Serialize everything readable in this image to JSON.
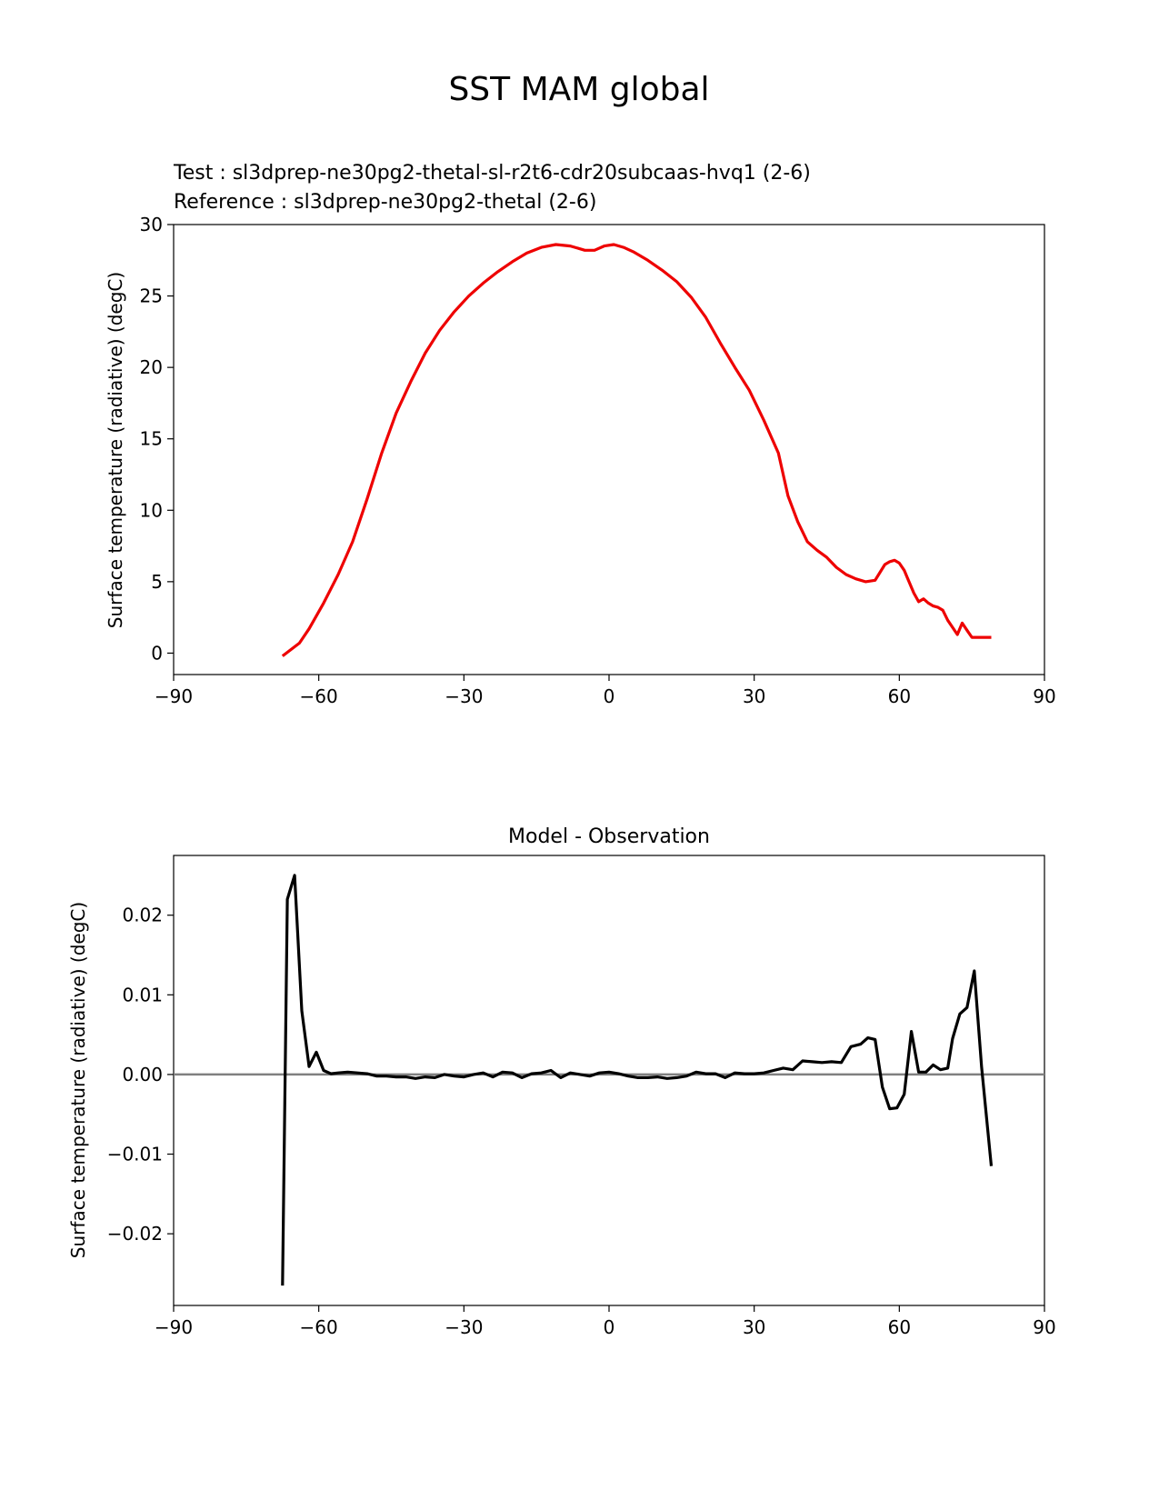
{
  "figure_title": "SST MAM global",
  "colors": {
    "test": "#000000",
    "reference": "#ee0000",
    "zero_line": "#808080"
  },
  "chart_data": [
    {
      "type": "line",
      "legend_test": "Test : sl3dprep-ne30pg2-thetal-sl-r2t6-cdr20subcaas-hvq1 (2-6)",
      "legend_reference": "Reference : sl3dprep-ne30pg2-thetal (2-6)",
      "xlabel": "",
      "ylabel": "Surface temperature (radiative) (degC)",
      "xlim": [
        -90,
        90
      ],
      "ylim": [
        -1.5,
        30
      ],
      "xticks": [
        -90,
        -60,
        -30,
        0,
        30,
        60,
        90
      ],
      "xtick_labels": [
        "−90",
        "−60",
        "−30",
        "0",
        "30",
        "60",
        "90"
      ],
      "yticks": [
        0,
        5,
        10,
        15,
        20,
        25,
        30
      ],
      "ytick_labels": [
        "0",
        "5",
        "10",
        "15",
        "20",
        "25",
        "30"
      ],
      "series": [
        {
          "name": "Reference",
          "x": [
            -67.5,
            -64,
            -62,
            -59,
            -56,
            -53,
            -50,
            -47,
            -44,
            -41,
            -38,
            -35,
            -32,
            -29,
            -26,
            -23,
            -20,
            -17,
            -14,
            -11,
            -8,
            -5,
            -3,
            -1,
            1,
            3,
            5,
            8,
            11,
            14,
            17,
            20,
            23,
            26,
            29,
            32,
            35,
            37,
            39,
            41,
            43,
            45,
            47,
            49,
            51,
            53,
            55,
            57,
            58,
            59,
            60,
            61,
            62,
            63,
            64,
            65,
            66,
            67,
            68,
            69,
            70,
            71,
            72,
            73,
            74,
            75,
            76,
            77,
            78,
            79
          ],
          "values": [
            -0.2,
            0.7,
            1.7,
            3.5,
            5.5,
            7.8,
            10.8,
            14.0,
            16.8,
            19.0,
            21.0,
            22.6,
            23.9,
            25.0,
            25.9,
            26.7,
            27.4,
            28.0,
            28.4,
            28.6,
            28.5,
            28.2,
            28.2,
            28.5,
            28.6,
            28.4,
            28.1,
            27.5,
            26.8,
            26.0,
            24.9,
            23.5,
            21.7,
            20.0,
            18.4,
            16.3,
            14.0,
            11.0,
            9.2,
            7.8,
            7.2,
            6.7,
            6.0,
            5.5,
            5.2,
            5.0,
            5.1,
            6.2,
            6.4,
            6.5,
            6.3,
            5.8,
            5.0,
            4.2,
            3.6,
            3.8,
            3.5,
            3.3,
            3.2,
            3.0,
            2.3,
            1.8,
            1.3,
            2.1,
            1.6,
            1.1,
            1.1,
            1.1,
            1.1,
            1.1
          ]
        }
      ]
    },
    {
      "type": "line",
      "title": "Model - Observation",
      "xlabel": "",
      "ylabel": "Surface temperature (radiative) (degC)",
      "xlim": [
        -90,
        90
      ],
      "ylim": [
        -0.029,
        0.0275
      ],
      "xticks": [
        -90,
        -60,
        -30,
        0,
        30,
        60,
        90
      ],
      "xtick_labels": [
        "−90",
        "−60",
        "−30",
        "0",
        "30",
        "60",
        "90"
      ],
      "yticks": [
        -0.02,
        -0.01,
        0.0,
        0.01,
        0.02
      ],
      "ytick_labels": [
        "−0.02",
        "−0.01",
        "0.00",
        "0.01",
        "0.02"
      ],
      "zero_line": 0,
      "series": [
        {
          "name": "Model - Observation",
          "x": [
            -67.5,
            -66.5,
            -65,
            -63.5,
            -62,
            -60.5,
            -59,
            -57.5,
            -56,
            -54,
            -52,
            -50,
            -48,
            -46,
            -44,
            -42,
            -40,
            -38,
            -36,
            -34,
            -32,
            -30,
            -28,
            -26,
            -24,
            -22,
            -20,
            -18,
            -16,
            -14,
            -12,
            -10,
            -8,
            -6,
            -4,
            -2,
            0,
            2,
            4,
            6,
            8,
            10,
            12,
            14,
            16,
            18,
            20,
            22,
            24,
            26,
            28,
            30,
            32,
            34,
            36,
            38,
            40,
            42,
            44,
            46,
            48,
            50,
            52,
            53.5,
            55,
            56.5,
            58,
            59.5,
            61,
            62.5,
            64,
            65.5,
            67,
            68.5,
            70,
            71,
            72.5,
            74,
            75.5,
            77,
            79
          ],
          "values": [
            -0.0265,
            0.022,
            0.025,
            0.008,
            0.001,
            0.0028,
            0.0005,
            0.0001,
            0.0002,
            0.0003,
            0.0002,
            0.0001,
            -0.0002,
            -0.0002,
            -0.0003,
            -0.0003,
            -0.0005,
            -0.0003,
            -0.0004,
            0.0,
            -0.0002,
            -0.0003,
            0.0,
            0.0002,
            -0.0003,
            0.0003,
            0.0002,
            -0.0004,
            0.0001,
            0.0002,
            0.0005,
            -0.0004,
            0.0002,
            0.0,
            -0.0002,
            0.0002,
            0.0003,
            0.0001,
            -0.0002,
            -0.0004,
            -0.0004,
            -0.0003,
            -0.0005,
            -0.0004,
            -0.0002,
            0.0003,
            0.0001,
            0.0001,
            -0.0004,
            0.0002,
            0.0001,
            0.0001,
            0.0002,
            0.0005,
            0.0008,
            0.0006,
            0.0017,
            0.0016,
            0.0015,
            0.0016,
            0.0015,
            0.0035,
            0.0038,
            0.0046,
            0.0044,
            -0.0016,
            -0.0043,
            -0.0042,
            -0.0025,
            0.0054,
            0.0003,
            0.0003,
            0.0012,
            0.0006,
            0.0008,
            0.0045,
            0.0076,
            0.0084,
            0.013,
            0.001,
            -0.0115
          ]
        }
      ]
    }
  ]
}
